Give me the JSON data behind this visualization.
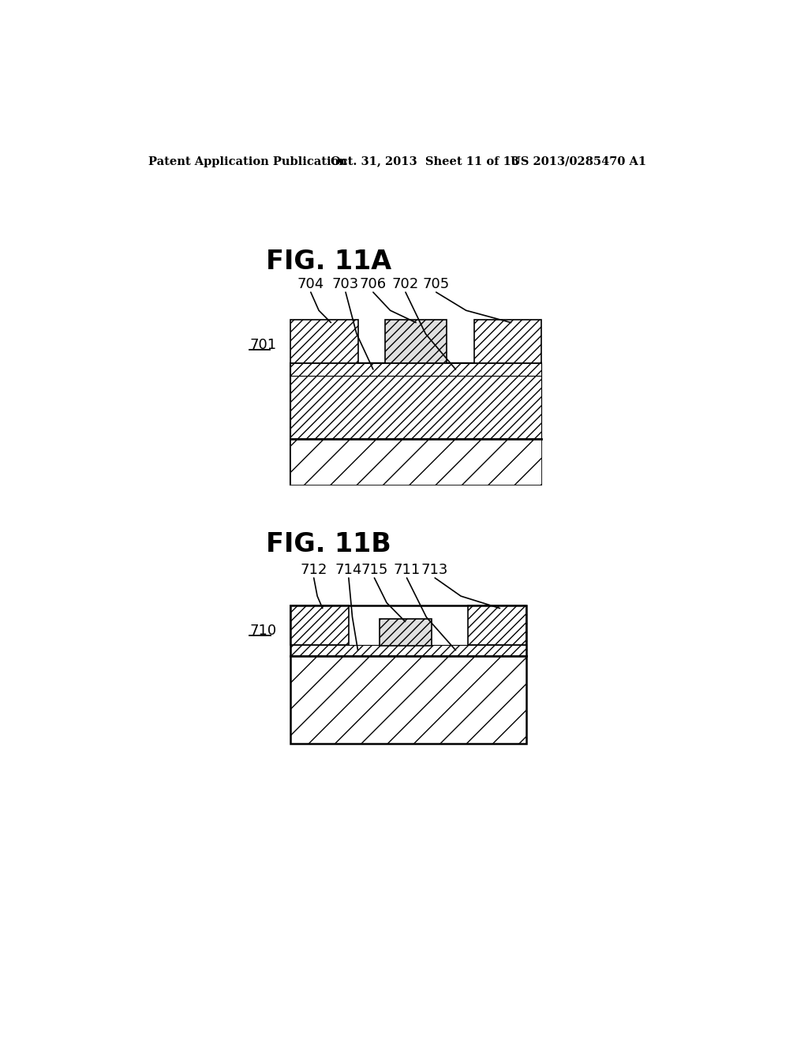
{
  "header_left": "Patent Application Publication",
  "header_mid": "Oct. 31, 2013  Sheet 11 of 13",
  "header_right": "US 2013/0285470 A1",
  "fig11a_title": "FIG. 11A",
  "fig11b_title": "FIG. 11B",
  "fig11a_ref": "701",
  "fig11b_ref": "710",
  "fig11a_labels": [
    "704",
    "703",
    "706",
    "702",
    "705"
  ],
  "fig11b_labels": [
    "712",
    "714",
    "715",
    "711",
    "713"
  ],
  "bg_color": "#ffffff",
  "line_color": "#000000"
}
